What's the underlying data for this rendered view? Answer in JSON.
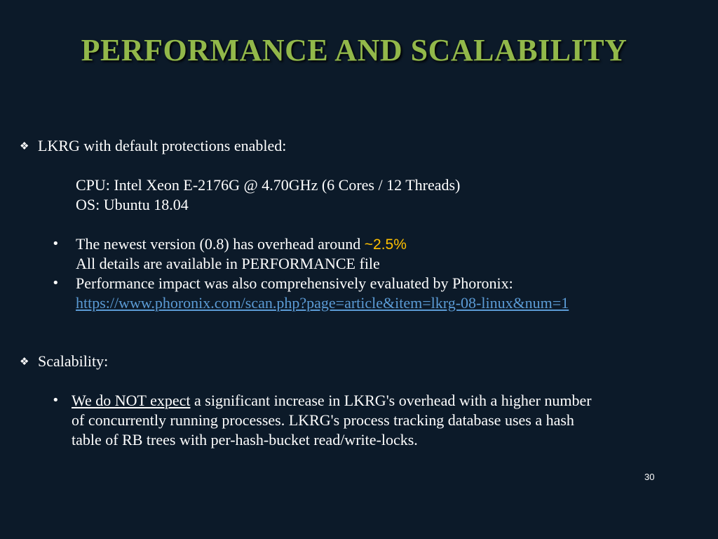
{
  "slide": {
    "title": "PERFORMANCE AND SCALABILITY",
    "page_number": "30",
    "colors": {
      "background": "#0c1a29",
      "title": "#92b84a",
      "highlight": "#ffc000",
      "link": "#5b9bd5",
      "text": "#ffffff"
    },
    "section1": {
      "bullet_icon": "diamond-bullet-icon",
      "heading": "LKRG with default protections enabled:",
      "specs": [
        "CPU: Intel Xeon E-2176G @ 4.70GHz (6 Cores / 12 Threads)",
        "OS: Ubuntu 18.04"
      ],
      "items": [
        {
          "text_before": "The newest version (0.8) has overhead around ",
          "highlight": "~2.5%",
          "line2": "All details are available in PERFORMANCE file"
        },
        {
          "text": "Performance impact was also comprehensively evaluated by Phoronix:",
          "link": "https://www.phoronix.com/scan.php?page=article&item=lkrg-08-linux&num=1"
        }
      ]
    },
    "section2": {
      "bullet_icon": "diamond-bullet-icon",
      "heading": "Scalability:",
      "item": {
        "underlined": "We do NOT expect",
        "line1_rest": " a significant increase in LKRG's overhead with a higher number",
        "line2": "of concurrently running processes. LKRG's process tracking database uses a hash",
        "line3": "table of RB trees with per-hash-bucket read/write-locks."
      }
    },
    "bullet_char": "•",
    "diamond_char": "❖"
  }
}
